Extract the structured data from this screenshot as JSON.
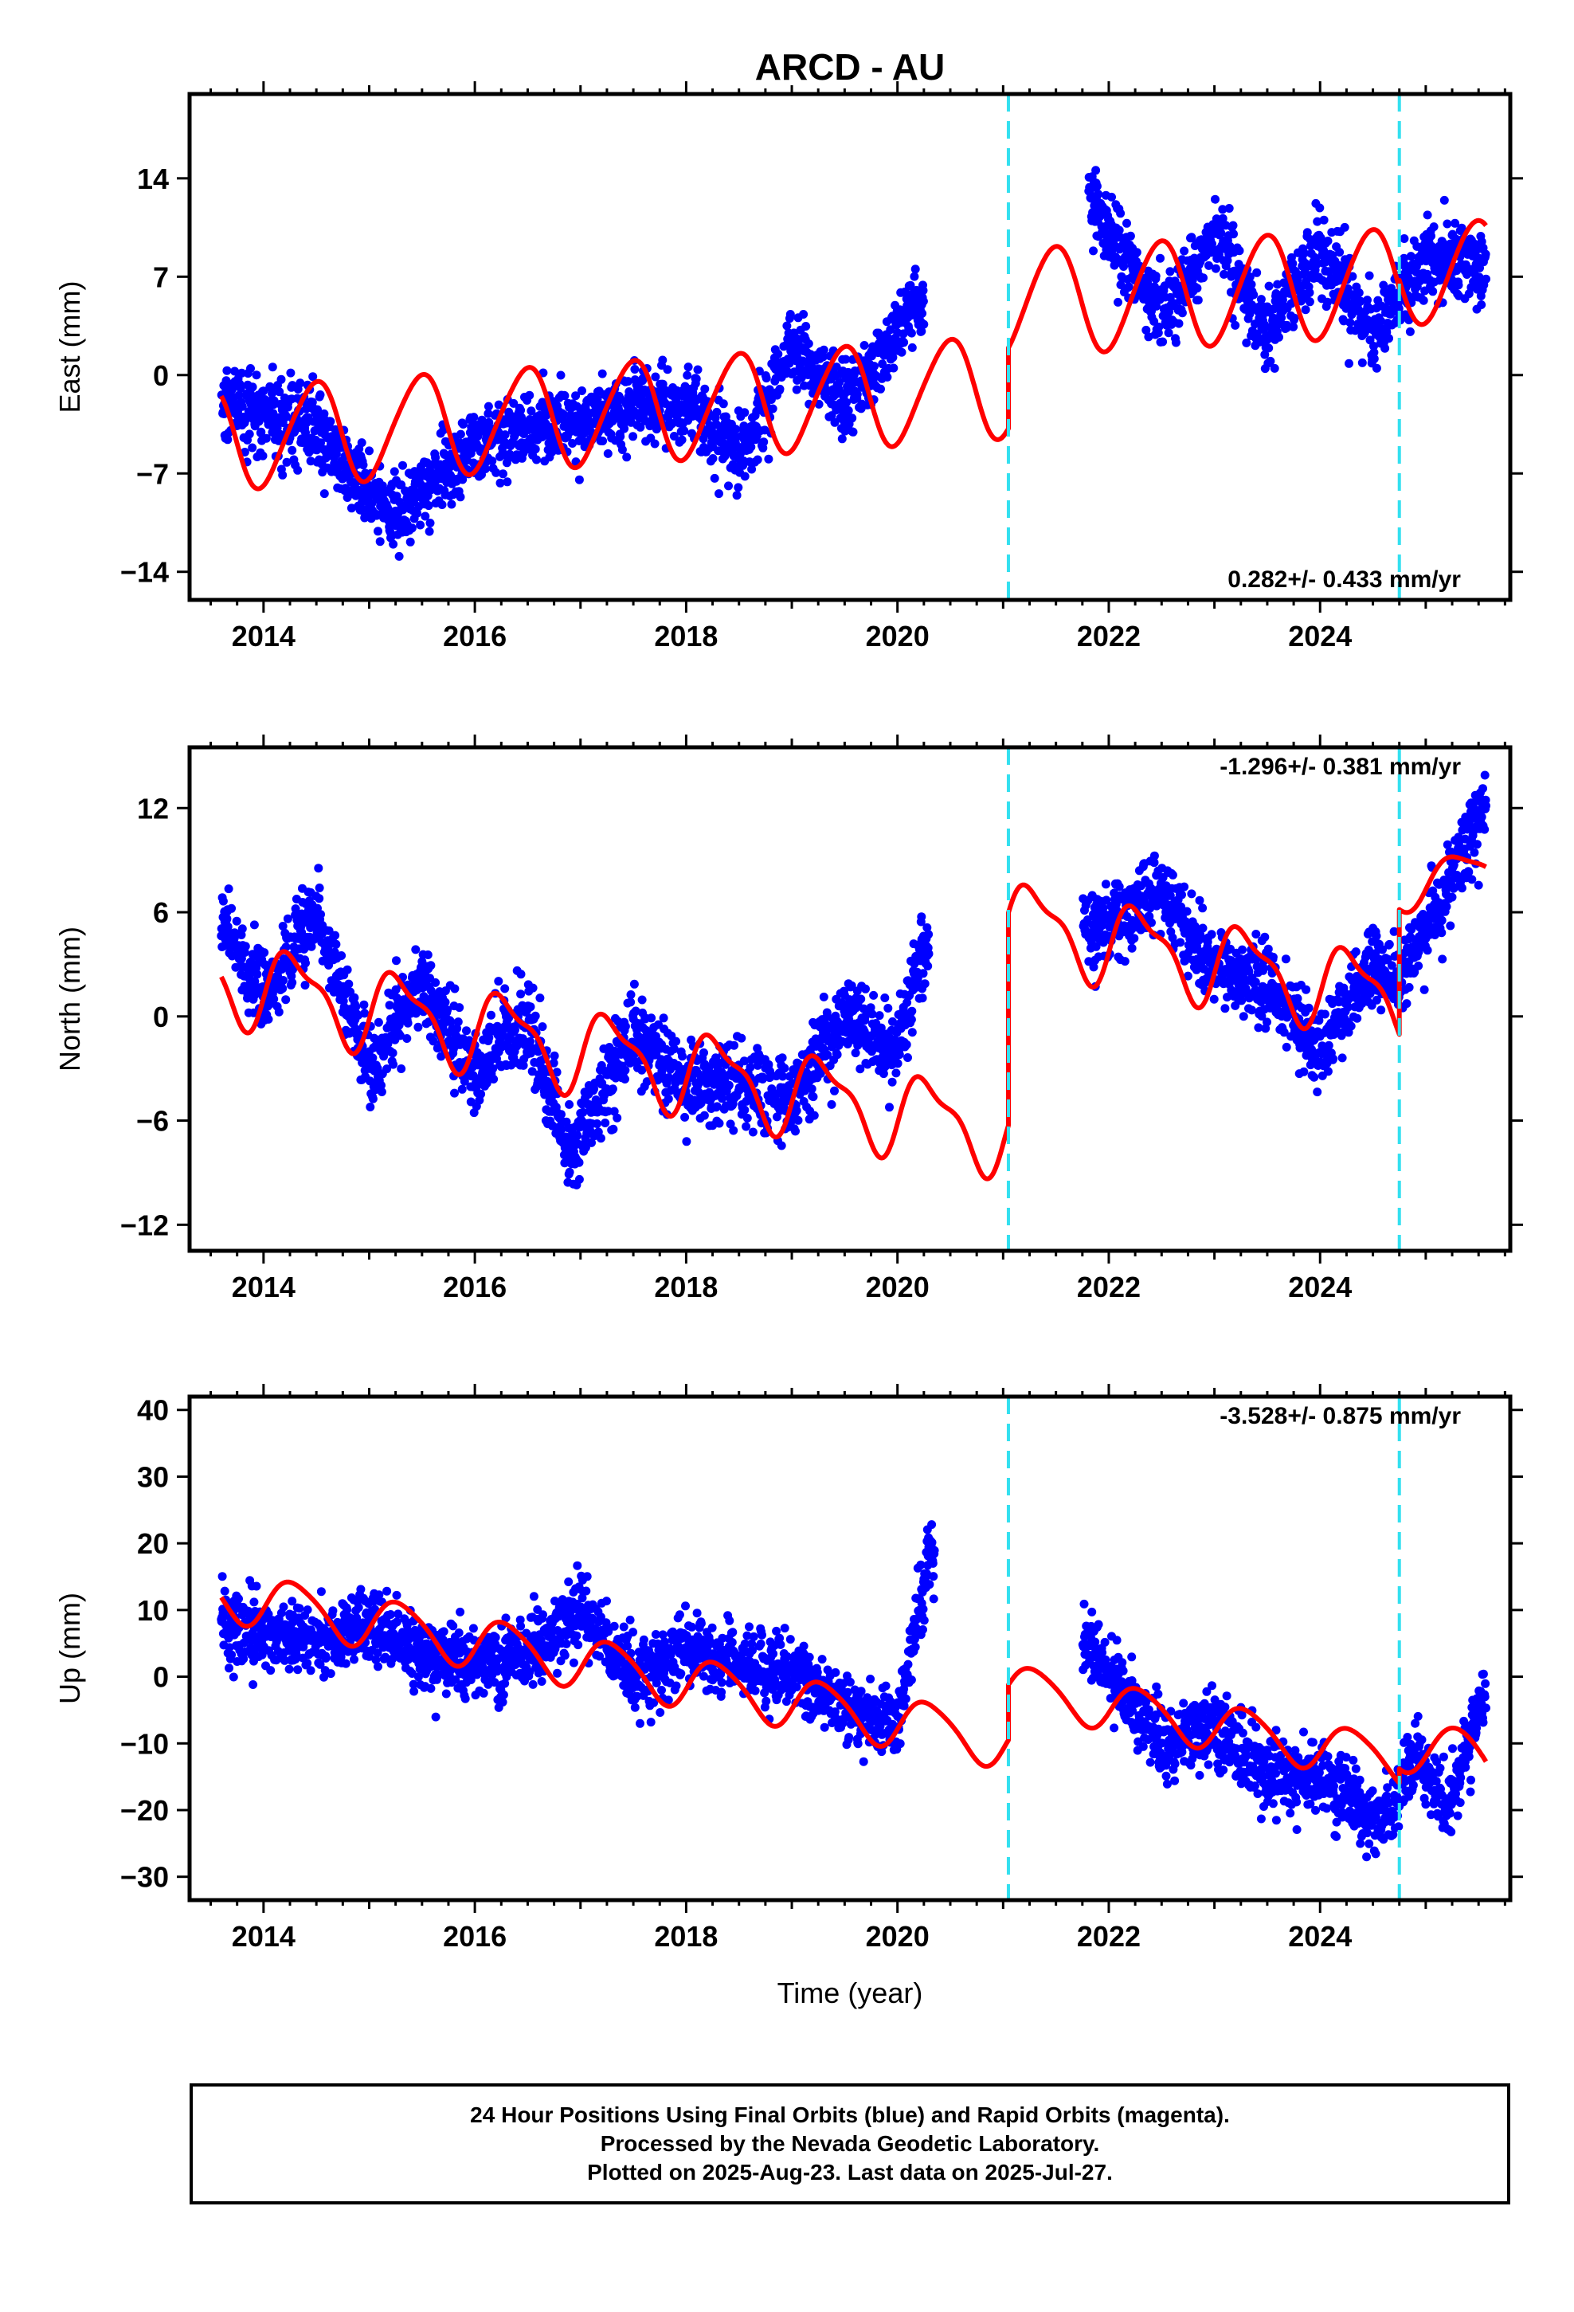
{
  "title": "ARCD - AU",
  "xlabel": "Time (year)",
  "colors": {
    "final_orbits": "#0000ff",
    "model_fit": "#ff0000",
    "offset_line": "#33e0f0",
    "axis": "#000000"
  },
  "footer": {
    "line1": "24 Hour Positions Using Final Orbits (blue) and Rapid Orbits (magenta).",
    "line2": "Processed by the Nevada Geodetic Laboratory.",
    "line3": "Plotted on 2025-Aug-23. Last data on 2025-Jul-27."
  },
  "chart_data": [
    {
      "type": "scatter",
      "component": "east",
      "ylabel": "East (mm)",
      "xlim": [
        2013.3,
        2025.8
      ],
      "ylim": [
        -16,
        20
      ],
      "xticks": [
        2014,
        2016,
        2018,
        2020,
        2022,
        2024
      ],
      "xtick_labels": [
        "2014",
        "2016",
        "2018",
        "2020",
        "2022",
        "2024"
      ],
      "yticks": [
        -14,
        -7,
        0,
        7,
        14
      ],
      "ytick_labels": [
        "−14",
        "−7",
        "0",
        "7",
        "14"
      ],
      "annotation": "0.282+/- 0.433 mm/yr",
      "annotation_position": "bottom-right",
      "offsets": [
        2021.05,
        2024.75
      ],
      "data_range": [
        2013.6,
        2025.57
      ],
      "gap": [
        2020.25,
        2021.8
      ],
      "data_trend": [
        [
          2013.6,
          -2
        ],
        [
          2014.5,
          -4
        ],
        [
          2015.2,
          -10
        ],
        [
          2016.0,
          -5
        ],
        [
          2017.0,
          -3
        ],
        [
          2018.0,
          -2
        ],
        [
          2018.5,
          -6
        ],
        [
          2019.0,
          2
        ],
        [
          2019.5,
          -2
        ],
        [
          2020.2,
          5
        ],
        [
          2021.8,
          13
        ],
        [
          2022.5,
          4
        ],
        [
          2023.0,
          10
        ],
        [
          2023.5,
          3
        ],
        [
          2024.0,
          9
        ],
        [
          2024.5,
          3
        ],
        [
          2025.0,
          8
        ],
        [
          2025.57,
          8
        ]
      ],
      "data_noise": 2.2,
      "fit": {
        "segments": [
          {
            "t0": 2013.6,
            "t1": 2021.05,
            "a": -4.5,
            "b": 0.5,
            "amp": 3.6,
            "phase": 0.23,
            "amp2": 0.4
          },
          {
            "t0": 2021.05,
            "t1": 2024.75,
            "a": 5.2,
            "b": 0.4,
            "amp": 3.8,
            "phase": 0.23,
            "amp2": 0.3
          },
          {
            "t0": 2024.75,
            "t1": 2025.57,
            "a": 7.2,
            "b": 0.3,
            "amp": 3.6,
            "phase": 0.23,
            "amp2": 0.2
          }
        ]
      },
      "rate_mm_per_yr": 0.282,
      "rate_uncertainty_mm_per_yr": 0.433
    },
    {
      "type": "scatter",
      "component": "north",
      "ylabel": "North (mm)",
      "xlim": [
        2013.3,
        2025.8
      ],
      "ylim": [
        -13.5,
        15.5
      ],
      "xticks": [
        2014,
        2016,
        2018,
        2020,
        2022,
        2024
      ],
      "xtick_labels": [
        "2014",
        "2016",
        "2018",
        "2020",
        "2022",
        "2024"
      ],
      "yticks": [
        -12,
        -6,
        0,
        6,
        12
      ],
      "ytick_labels": [
        "−12",
        "−6",
        "0",
        "6",
        "12"
      ],
      "annotation": "-1.296+/- 0.381 mm/yr",
      "annotation_position": "top-right",
      "offsets": [
        2021.05,
        2024.75
      ],
      "data_range": [
        2013.6,
        2025.57
      ],
      "gap": [
        2020.3,
        2021.75
      ],
      "data_trend": [
        [
          2013.6,
          6
        ],
        [
          2014.0,
          1
        ],
        [
          2014.5,
          6
        ],
        [
          2015.0,
          -3
        ],
        [
          2015.5,
          2
        ],
        [
          2016.0,
          -3
        ],
        [
          2016.5,
          0
        ],
        [
          2016.9,
          -8
        ],
        [
          2017.5,
          -1
        ],
        [
          2018.0,
          -4
        ],
        [
          2018.5,
          -4
        ],
        [
          2019.0,
          -5
        ],
        [
          2019.5,
          0
        ],
        [
          2020.0,
          -2
        ],
        [
          2020.25,
          4
        ],
        [
          2021.8,
          5
        ],
        [
          2022.5,
          7
        ],
        [
          2023.0,
          3
        ],
        [
          2023.5,
          2
        ],
        [
          2024.0,
          -2
        ],
        [
          2024.5,
          3
        ],
        [
          2024.75,
          2
        ],
        [
          2025.0,
          5
        ],
        [
          2025.57,
          12
        ]
      ],
      "data_noise": 1.9,
      "fit": {
        "segments": [
          {
            "t0": 2013.6,
            "t1": 2021.05,
            "a": 2.2,
            "b": -1.2,
            "amp": 2.2,
            "phase": 0.05,
            "amp2": 0.8
          },
          {
            "t0": 2021.05,
            "t1": 2024.75,
            "a": 5.5,
            "b": -1.2,
            "amp": 2.2,
            "phase": 0.05,
            "amp2": 0.8
          },
          {
            "t0": 2024.75,
            "t1": 2025.57,
            "a": 7.3,
            "b": 1.5,
            "amp": 1.2,
            "phase": 0.05,
            "amp2": 0.3
          }
        ]
      },
      "rate_mm_per_yr": -1.296,
      "rate_uncertainty_mm_per_yr": 0.381
    },
    {
      "type": "scatter",
      "component": "up",
      "ylabel": "Up (mm)",
      "xlim": [
        2013.3,
        2025.8
      ],
      "ylim": [
        -33.5,
        42
      ],
      "xticks": [
        2014,
        2016,
        2018,
        2020,
        2022,
        2024
      ],
      "xtick_labels": [
        "2014",
        "2016",
        "2018",
        "2020",
        "2022",
        "2024"
      ],
      "yticks": [
        -30,
        -20,
        -10,
        0,
        10,
        20,
        30,
        40
      ],
      "ytick_labels": [
        "−30",
        "−20",
        "−10",
        "0",
        "10",
        "20",
        "30",
        "40"
      ],
      "annotation": "-3.528+/- 0.875 mm/yr",
      "annotation_position": "top-right",
      "offsets": [
        2021.05,
        2024.75
      ],
      "data_range": [
        2013.6,
        2025.57
      ],
      "gap": [
        2020.35,
        2021.75
      ],
      "data_trend": [
        [
          2013.6,
          8
        ],
        [
          2014.5,
          5
        ],
        [
          2015.0,
          8
        ],
        [
          2015.5,
          3
        ],
        [
          2016.0,
          2
        ],
        [
          2016.5,
          3
        ],
        [
          2017.0,
          10
        ],
        [
          2017.5,
          0
        ],
        [
          2018.0,
          4
        ],
        [
          2018.5,
          2
        ],
        [
          2019.0,
          1
        ],
        [
          2019.5,
          -5
        ],
        [
          2020.0,
          -8
        ],
        [
          2020.3,
          18
        ],
        [
          2021.8,
          5
        ],
        [
          2022.5,
          -10
        ],
        [
          2023.0,
          -8
        ],
        [
          2023.5,
          -15
        ],
        [
          2024.0,
          -15
        ],
        [
          2024.6,
          -22
        ],
        [
          2024.9,
          -12
        ],
        [
          2025.2,
          -20
        ],
        [
          2025.57,
          -2
        ]
      ],
      "data_noise": 4.5,
      "fit": {
        "segments": [
          {
            "t0": 2013.6,
            "t1": 2021.05,
            "a": 12.5,
            "b": -3.0,
            "amp": 3.8,
            "phase": 0.05,
            "amp2": 0.6
          },
          {
            "t0": 2021.05,
            "t1": 2024.75,
            "a": -1.5,
            "b": -3.0,
            "amp": 3.5,
            "phase": 0.05,
            "amp2": 0.5
          },
          {
            "t0": 2024.75,
            "t1": 2025.57,
            "a": -10.0,
            "b": -3.0,
            "amp": 4.0,
            "phase": 0.05,
            "amp2": 0.3
          }
        ]
      },
      "rate_mm_per_yr": -3.528,
      "rate_uncertainty_mm_per_yr": 0.875
    }
  ]
}
